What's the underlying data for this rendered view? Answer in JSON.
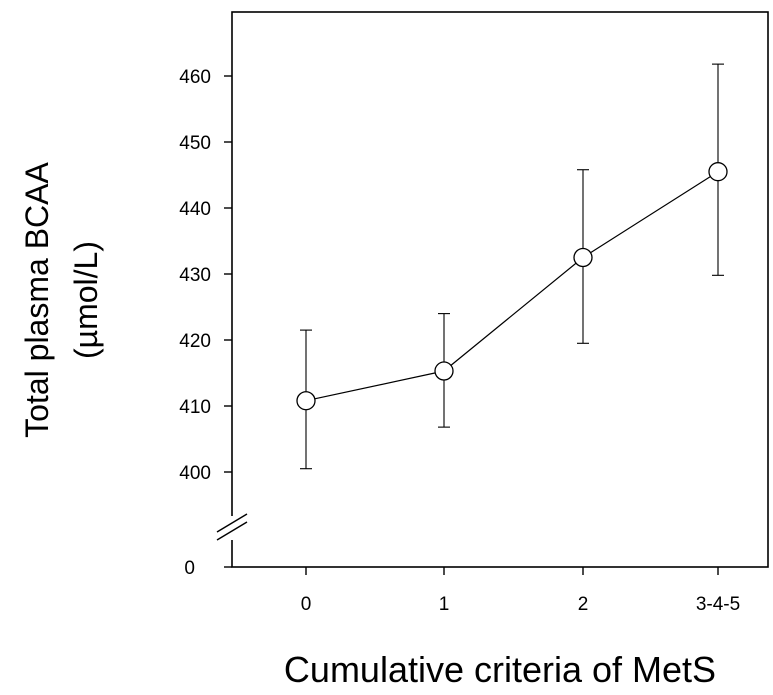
{
  "chart_data": {
    "type": "line",
    "title": "",
    "xlabel": "Cumulative criteria of MetS",
    "ylabel": [
      "Total plasma BCAA",
      "(µmol/L)"
    ],
    "categories": [
      "0",
      "1",
      "2",
      "3-4-5"
    ],
    "series": [
      {
        "values": [
          410.8,
          415.3,
          432.5,
          445.5
        ],
        "error_low": [
          400.5,
          406.8,
          419.5,
          429.8
        ],
        "error_high": [
          421.5,
          424.0,
          445.8,
          461.8
        ],
        "marker": "open-circle",
        "color": "#000000"
      }
    ],
    "ylim": [
      400,
      465
    ],
    "yticks": [
      400,
      410,
      420,
      430,
      440,
      450,
      460
    ],
    "y_axis_break": true,
    "y_zero_label": "0",
    "grid": false
  }
}
